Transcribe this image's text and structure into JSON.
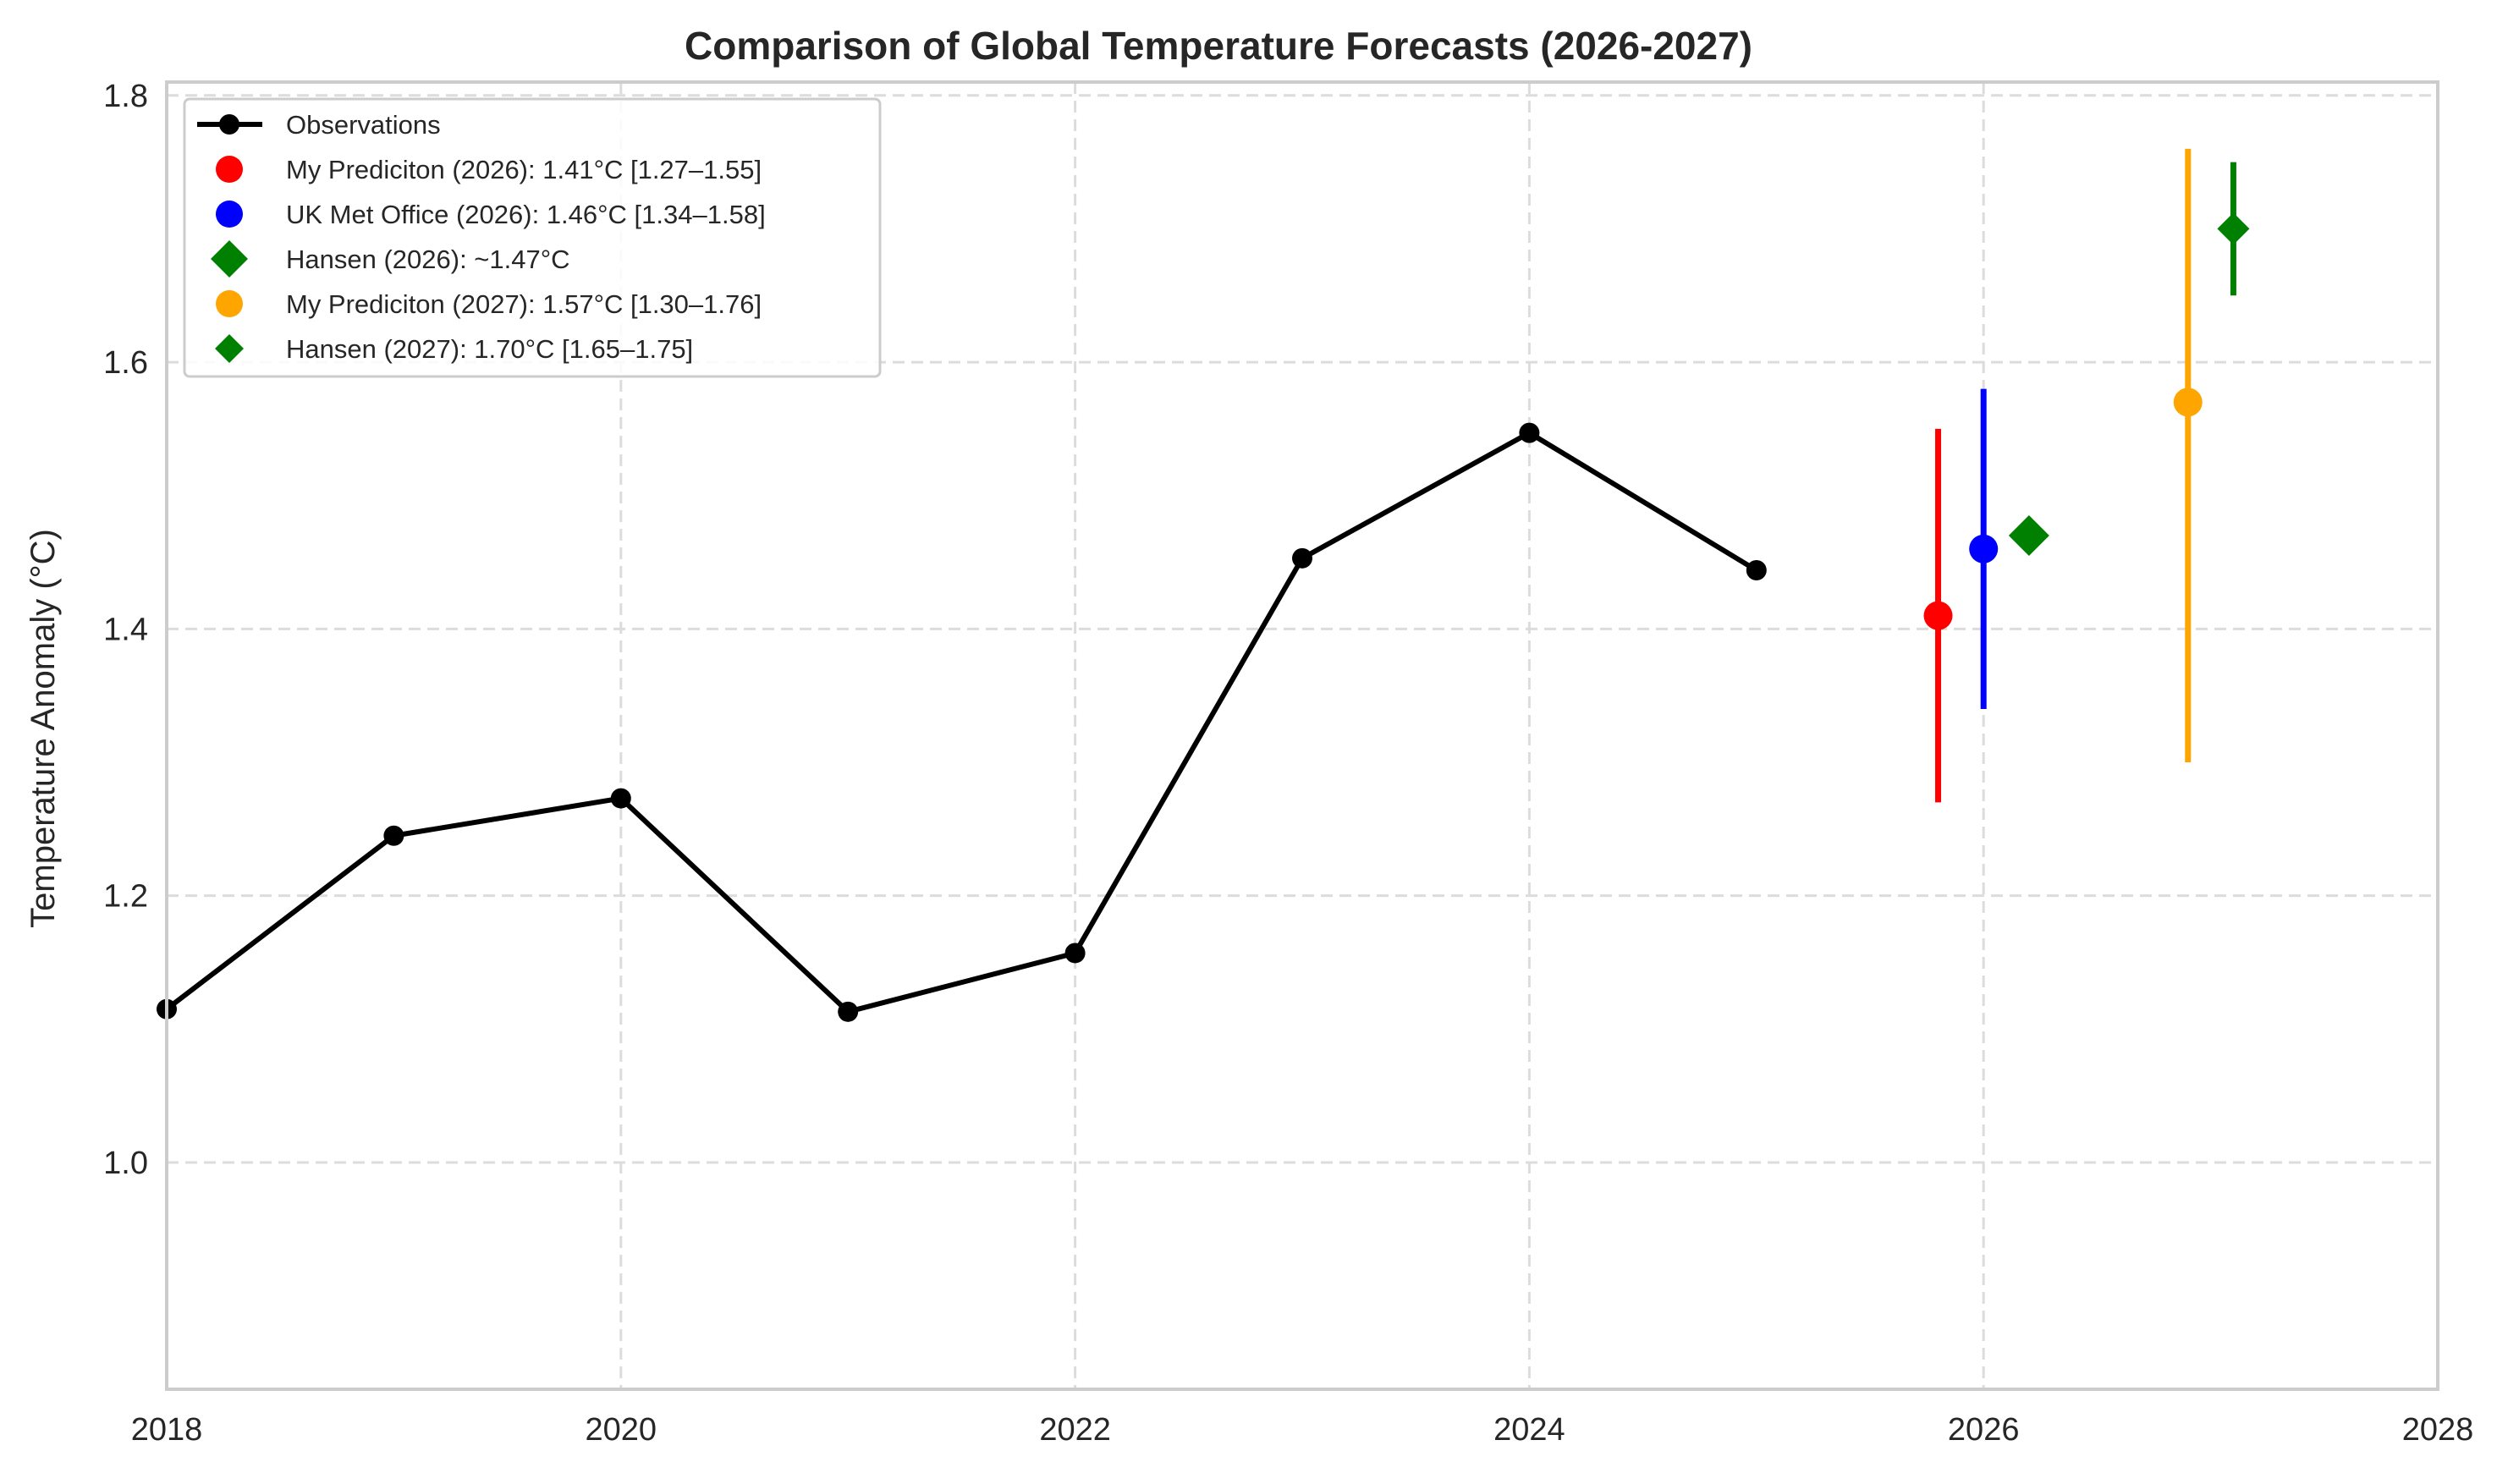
{
  "chart_data": {
    "type": "line",
    "title": "Comparison of Global Temperature Forecasts (2026-2027)",
    "xlabel": "",
    "ylabel": "Temperature Anomaly (°C)",
    "xlim": [
      2018,
      2028
    ],
    "ylim": [
      0.83,
      1.81
    ],
    "xticks": [
      2018,
      2020,
      2022,
      2024,
      2026,
      2028
    ],
    "yticks": [
      1.0,
      1.2,
      1.4,
      1.6,
      1.8
    ],
    "grid": true,
    "legend_position": "top-left",
    "observations": {
      "name": "Observations",
      "color": "#000000",
      "x": [
        2018,
        2019,
        2020,
        2021,
        2022,
        2023,
        2024,
        2025
      ],
      "y": [
        1.115,
        1.245,
        1.273,
        1.113,
        1.157,
        1.453,
        1.547,
        1.444
      ]
    },
    "forecasts": [
      {
        "name": "My Prediciton (2026): 1.41°C [1.27–1.55]",
        "x": 2025.8,
        "value": 1.41,
        "low": 1.27,
        "high": 1.55,
        "color": "#ff0000",
        "marker": "circle"
      },
      {
        "name": "UK Met Office (2026): 1.46°C [1.34–1.58]",
        "x": 2026.0,
        "value": 1.46,
        "low": 1.34,
        "high": 1.58,
        "color": "#0000ff",
        "marker": "circle"
      },
      {
        "name": "Hansen (2026): ~1.47°C",
        "x": 2026.2,
        "value": 1.47,
        "low": null,
        "high": null,
        "color": "#008000",
        "marker": "diamond"
      },
      {
        "name": "My Prediciton (2027): 1.57°C [1.30–1.76]",
        "x": 2026.9,
        "value": 1.57,
        "low": 1.3,
        "high": 1.76,
        "color": "#ffa500",
        "marker": "circle"
      },
      {
        "name": "Hansen (2027): 1.70°C [1.65–1.75]",
        "x": 2027.1,
        "value": 1.7,
        "low": 1.65,
        "high": 1.75,
        "color": "#008000",
        "marker": "diamond-small"
      }
    ]
  }
}
